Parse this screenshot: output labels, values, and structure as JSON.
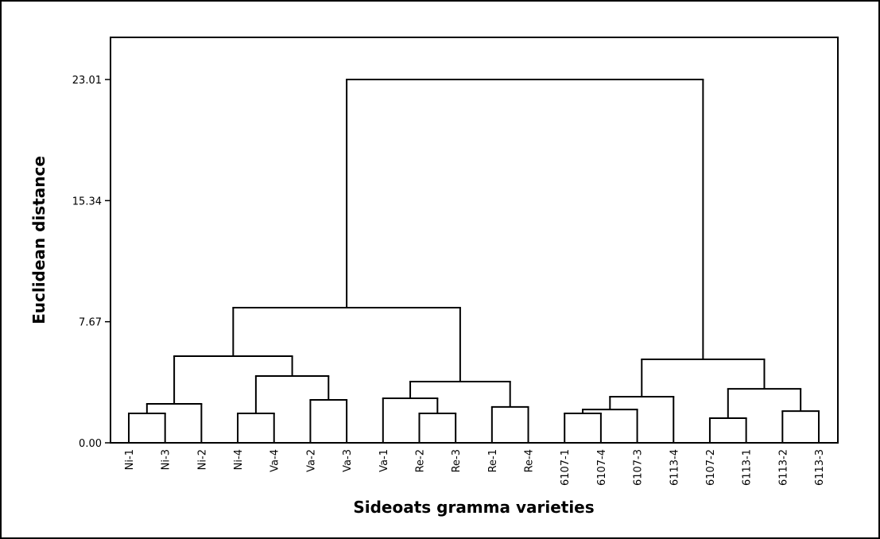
{
  "chart_data": {
    "type": "dendrogram",
    "x_label": "Sideoats gramma varieties",
    "y_label": "Euclidean distance",
    "ylim": [
      0,
      25.68
    ],
    "yticks": [
      {
        "value": 0,
        "label": "0.00"
      },
      7.67,
      15.34,
      23.01
    ],
    "color": "#000000",
    "tree": {
      "height": 23.01,
      "children": [
        {
          "height": 8.56,
          "children": [
            {
              "height": 5.49,
              "children": [
                {
                  "height": 2.47,
                  "children": [
                    {
                      "height": 1.86,
                      "children": [
                        "Ni-1",
                        "Ni-3"
                      ]
                    },
                    "Ni-2"
                  ]
                },
                {
                  "height": 4.23,
                  "children": [
                    {
                      "height": 1.86,
                      "children": [
                        "Ni-4",
                        "Va-4"
                      ]
                    },
                    {
                      "height": 2.72,
                      "children": [
                        "Va-2",
                        "Va-3"
                      ]
                    }
                  ]
                }
              ]
            },
            {
              "height": 3.88,
              "children": [
                {
                  "height": 2.82,
                  "children": [
                    "Va-1",
                    {
                      "height": 1.86,
                      "children": [
                        "Re-2",
                        "Re-3"
                      ]
                    }
                  ]
                },
                {
                  "height": 2.27,
                  "children": [
                    "Re-1",
                    "Re-4"
                  ]
                }
              ]
            }
          ]
        },
        {
          "height": 5.29,
          "children": [
            {
              "height": 2.92,
              "children": [
                {
                  "height": 2.11,
                  "children": [
                    {
                      "height": 1.86,
                      "children": [
                        "6107-1",
                        "6107-4"
                      ]
                    },
                    "6107-3"
                  ]
                },
                "6113-4"
              ]
            },
            {
              "height": 3.42,
              "children": [
                {
                  "height": 1.56,
                  "children": [
                    "6107-2",
                    "6113-1"
                  ]
                },
                {
                  "height": 2.01,
                  "children": [
                    "6113-2",
                    "6113-3"
                  ]
                }
              ]
            }
          ]
        }
      ]
    }
  }
}
